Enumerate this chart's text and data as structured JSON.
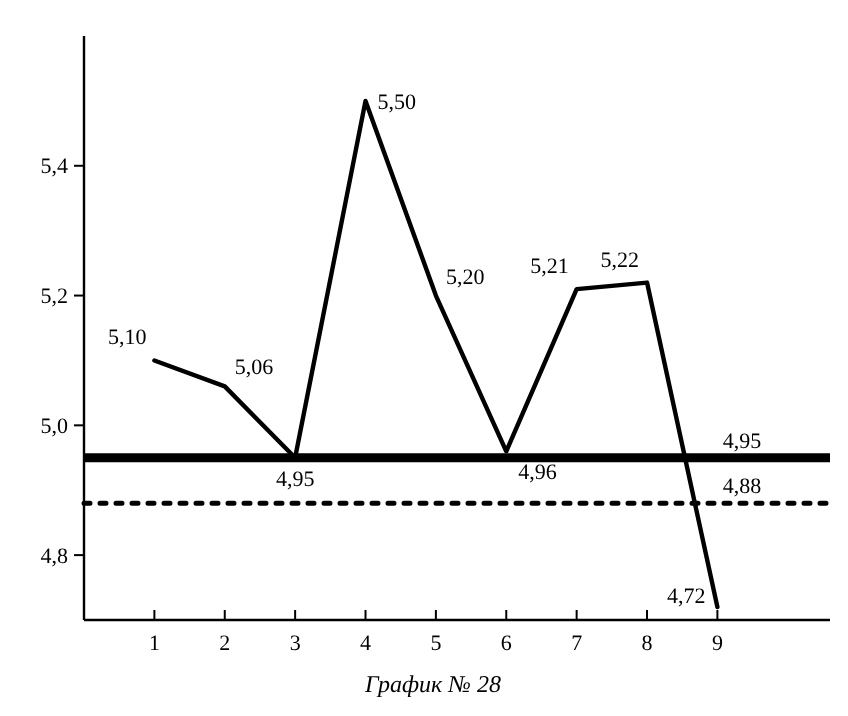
{
  "chart_data": {
    "type": "line",
    "title": "График № 28",
    "x": [
      1,
      2,
      3,
      4,
      5,
      6,
      7,
      8,
      9
    ],
    "values": [
      5.1,
      5.06,
      4.95,
      5.5,
      5.2,
      4.96,
      5.21,
      5.22,
      4.72
    ],
    "value_labels": [
      "5,10",
      "5,06",
      "4,95",
      "5,50",
      "5,20",
      "4,96",
      "5,21",
      "5,22",
      "4,72"
    ],
    "color": "#000000",
    "marker": "none",
    "line_style": "solid",
    "xlim": [
      0,
      10.6
    ],
    "xticks": [
      1,
      2,
      3,
      4,
      5,
      6,
      7,
      8,
      9
    ],
    "ylim": [
      4.7,
      5.6
    ],
    "yticks": [
      {
        "value": 4.8,
        "label": "4,8"
      },
      {
        "value": 5.0,
        "label": "5,0"
      },
      {
        "value": 5.2,
        "label": "5,2"
      },
      {
        "value": 5.4,
        "label": "5,4"
      }
    ],
    "ref_lines": [
      {
        "axis": "y",
        "value": 4.95,
        "label": "4,95",
        "color": "#000000",
        "line_style": "solid"
      },
      {
        "axis": "y",
        "value": 4.88,
        "label": "4,88",
        "color": "#000000",
        "line_style": "dotted"
      }
    ]
  }
}
